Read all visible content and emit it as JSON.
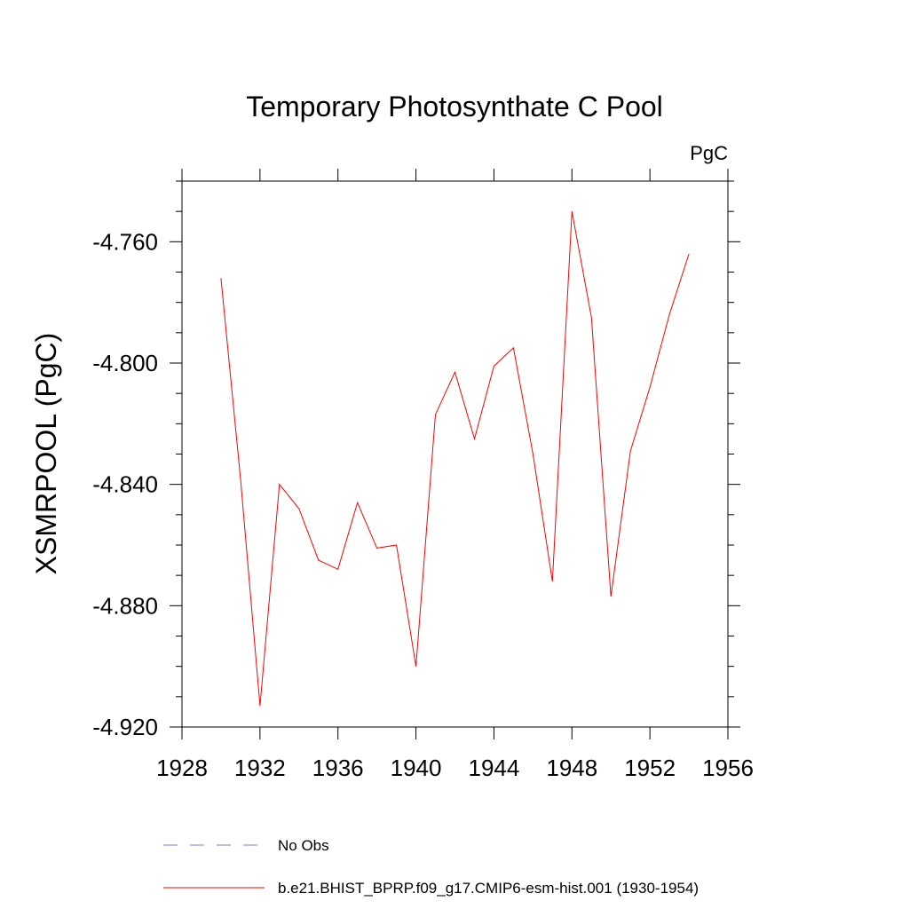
{
  "chart_data": {
    "type": "line",
    "title": "Temporary Photosynthate C Pool",
    "units_label": "PgC",
    "xlabel": "",
    "ylabel": "XSMRPOOL  (PgC)",
    "xlim": [
      1928,
      1956
    ],
    "ylim": [
      -4.92,
      -4.74
    ],
    "x_ticks": [
      1928,
      1932,
      1936,
      1940,
      1944,
      1948,
      1952,
      1956
    ],
    "x_tick_labels": [
      "1928",
      "1932",
      "1936",
      "1940",
      "1944",
      "1948",
      "1952",
      "1956"
    ],
    "y_ticks": [
      -4.92,
      -4.88,
      -4.84,
      -4.8,
      -4.76
    ],
    "y_tick_labels": [
      "-4.920",
      "-4.880",
      "-4.840",
      "-4.800",
      "-4.760"
    ],
    "series": [
      {
        "name": "b.e21.BHIST_BPRP.f09_g17.CMIP6-esm-hist.001 (1930-1954)",
        "color": "#ff0000",
        "dash": "solid",
        "x": [
          1930,
          1931,
          1932,
          1933,
          1934,
          1935,
          1936,
          1937,
          1938,
          1939,
          1940,
          1941,
          1942,
          1943,
          1944,
          1945,
          1946,
          1947,
          1948,
          1949,
          1950,
          1951,
          1952,
          1953,
          1954
        ],
        "values": [
          -4.772,
          -4.838,
          -4.913,
          -4.84,
          -4.848,
          -4.865,
          -4.868,
          -4.846,
          -4.861,
          -4.86,
          -4.9,
          -4.817,
          -4.803,
          -4.825,
          -4.801,
          -4.795,
          -4.83,
          -4.872,
          -4.75,
          -4.785,
          -4.877,
          -4.829,
          -4.808,
          -4.784,
          -4.764
        ]
      }
    ],
    "legend": [
      {
        "label": "No Obs",
        "color": "#7b7bd8",
        "dash": "dashed"
      },
      {
        "label": "b.e21.BHIST_BPRP.f09_g17.CMIP6-esm-hist.001 (1930-1954)",
        "color": "#ff0000",
        "dash": "solid"
      }
    ],
    "legend_position": "bottom-left"
  }
}
